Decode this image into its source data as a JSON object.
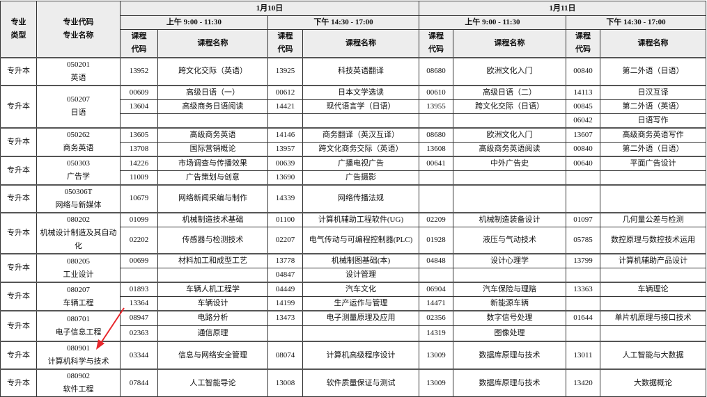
{
  "header": {
    "major_type": "专业类型",
    "major_code": "专业代码",
    "major_name": "专业名称",
    "days": [
      {
        "date": "1月10日",
        "sessions": [
          "上午 9:00 - 11:30",
          "下午 14:30 - 17:00"
        ]
      },
      {
        "date": "1月11日",
        "sessions": [
          "上午 9:00 - 11:30",
          "下午 14:30 - 17:00"
        ]
      }
    ],
    "course_code": "课程代码",
    "course_name": "课程名称"
  },
  "majors": [
    {
      "type": "专升本",
      "code": "050201",
      "name": "英语",
      "rows": [
        [
          [
            "13952",
            "跨文化交际（英语）"
          ],
          [
            "13925",
            "科技英语翻译"
          ],
          [
            "08680",
            "欧洲文化入门"
          ],
          [
            "00840",
            "第二外语（日语）"
          ]
        ]
      ]
    },
    {
      "type": "专升本",
      "code": "050207",
      "name": "日语",
      "rows": [
        [
          [
            "00609",
            "高级日语（一）"
          ],
          [
            "00612",
            "日本文学选读"
          ],
          [
            "00610",
            "高级日语（二）"
          ],
          [
            "14113",
            "日汉互译"
          ]
        ],
        [
          [
            "13604",
            "高级商务日语阅读"
          ],
          [
            "14421",
            "现代语言学（日语）"
          ],
          [
            "13955",
            "跨文化交际（日语）"
          ],
          [
            "00845",
            "第二外语（英语）"
          ]
        ],
        [
          [
            "",
            ""
          ],
          [
            "",
            ""
          ],
          [
            "",
            ""
          ],
          [
            "06042",
            "日语写作"
          ]
        ]
      ]
    },
    {
      "type": "专升本",
      "code": "050262",
      "name": "商务英语",
      "rows": [
        [
          [
            "13605",
            "高级商务英语"
          ],
          [
            "14146",
            "商务翻译（英汉互译）"
          ],
          [
            "08680",
            "欧洲文化入门"
          ],
          [
            "13607",
            "高级商务英语写作"
          ]
        ],
        [
          [
            "13708",
            "国际营销概论"
          ],
          [
            "13957",
            "跨文化商务交际（英语）"
          ],
          [
            "13608",
            "高级商务英语阅读"
          ],
          [
            "00840",
            "第二外语（日语）"
          ]
        ]
      ]
    },
    {
      "type": "专升本",
      "code": "050303",
      "name": "广告学",
      "rows": [
        [
          [
            "14226",
            "市场调查与传播效果"
          ],
          [
            "00639",
            "广播电视广告"
          ],
          [
            "00641",
            "中外广告史"
          ],
          [
            "00640",
            "平面广告设计"
          ]
        ],
        [
          [
            "11009",
            "广告策划与创意"
          ],
          [
            "13690",
            "广告摄影"
          ],
          [
            "",
            ""
          ],
          [
            "",
            ""
          ]
        ]
      ]
    },
    {
      "type": "专升本",
      "code": "050306T",
      "name": "网络与新媒体",
      "rows": [
        [
          [
            "10679",
            "网络新闻采编与制作"
          ],
          [
            "14339",
            "网络传播法规"
          ],
          [
            "",
            ""
          ],
          [
            "",
            ""
          ]
        ]
      ]
    },
    {
      "type": "专升本",
      "code": "080202",
      "name": "机械设计制造及其自动化",
      "rows": [
        [
          [
            "01099",
            "机械制造技术基础"
          ],
          [
            "01100",
            "计算机辅助工程软件(UG)"
          ],
          [
            "02209",
            "机械制造装备设计"
          ],
          [
            "01097",
            "几何量公差与检测"
          ]
        ],
        [
          [
            "02202",
            "传感器与检测技术"
          ],
          [
            "02207",
            "电气传动与可编程控制器(PLC)"
          ],
          [
            "01928",
            "液压与气动技术"
          ],
          [
            "05785",
            "数控原理与数控技术运用"
          ]
        ]
      ]
    },
    {
      "type": "专升本",
      "code": "080205",
      "name": "工业设计",
      "rows": [
        [
          [
            "00699",
            "材料加工和成型工艺"
          ],
          [
            "13778",
            "机械制图基础(本)"
          ],
          [
            "04848",
            "设计心理学"
          ],
          [
            "13799",
            "计算机辅助产品设计"
          ]
        ],
        [
          [
            "",
            ""
          ],
          [
            "04847",
            "设计管理"
          ],
          [
            "",
            ""
          ],
          [
            "",
            ""
          ]
        ]
      ]
    },
    {
      "type": "专升本",
      "code": "080207",
      "name": "车辆工程",
      "rows": [
        [
          [
            "01893",
            "车辆人机工程学"
          ],
          [
            "04449",
            "汽车文化"
          ],
          [
            "06904",
            "汽车保险与理赔"
          ],
          [
            "13363",
            "车辆理论"
          ]
        ],
        [
          [
            "13364",
            "车辆设计"
          ],
          [
            "14199",
            "生产运作与管理"
          ],
          [
            "14471",
            "新能源车辆"
          ],
          [
            "",
            ""
          ]
        ]
      ]
    },
    {
      "type": "专升本",
      "code": "080701",
      "name": "电子信息工程",
      "rows": [
        [
          [
            "08947",
            "电路分析"
          ],
          [
            "13473",
            "电子测量原理及应用"
          ],
          [
            "02356",
            "数字信号处理"
          ],
          [
            "01644",
            "单片机原理与接口技术"
          ]
        ],
        [
          [
            "02363",
            "通信原理"
          ],
          [
            "",
            ""
          ],
          [
            "14319",
            "图像处理"
          ],
          [
            "",
            ""
          ]
        ]
      ]
    },
    {
      "type": "专升本",
      "code": "080901",
      "name": "计算机科学与技术",
      "rows": [
        [
          [
            "03344",
            "信息与网络安全管理"
          ],
          [
            "08074",
            "计算机高级程序设计"
          ],
          [
            "13009",
            "数据库原理与技术"
          ],
          [
            "13011",
            "人工智能与大数据"
          ]
        ]
      ]
    },
    {
      "type": "专升本",
      "code": "080902",
      "name": "软件工程",
      "rows": [
        [
          [
            "07844",
            "人工智能导论"
          ],
          [
            "13008",
            "软件质量保证与测试"
          ],
          [
            "13009",
            "数据库原理与技术"
          ],
          [
            "13420",
            "大数据概论"
          ]
        ]
      ]
    }
  ],
  "annotation": {
    "arrow_color": "#e8262b",
    "header_bg": "#ededed"
  }
}
